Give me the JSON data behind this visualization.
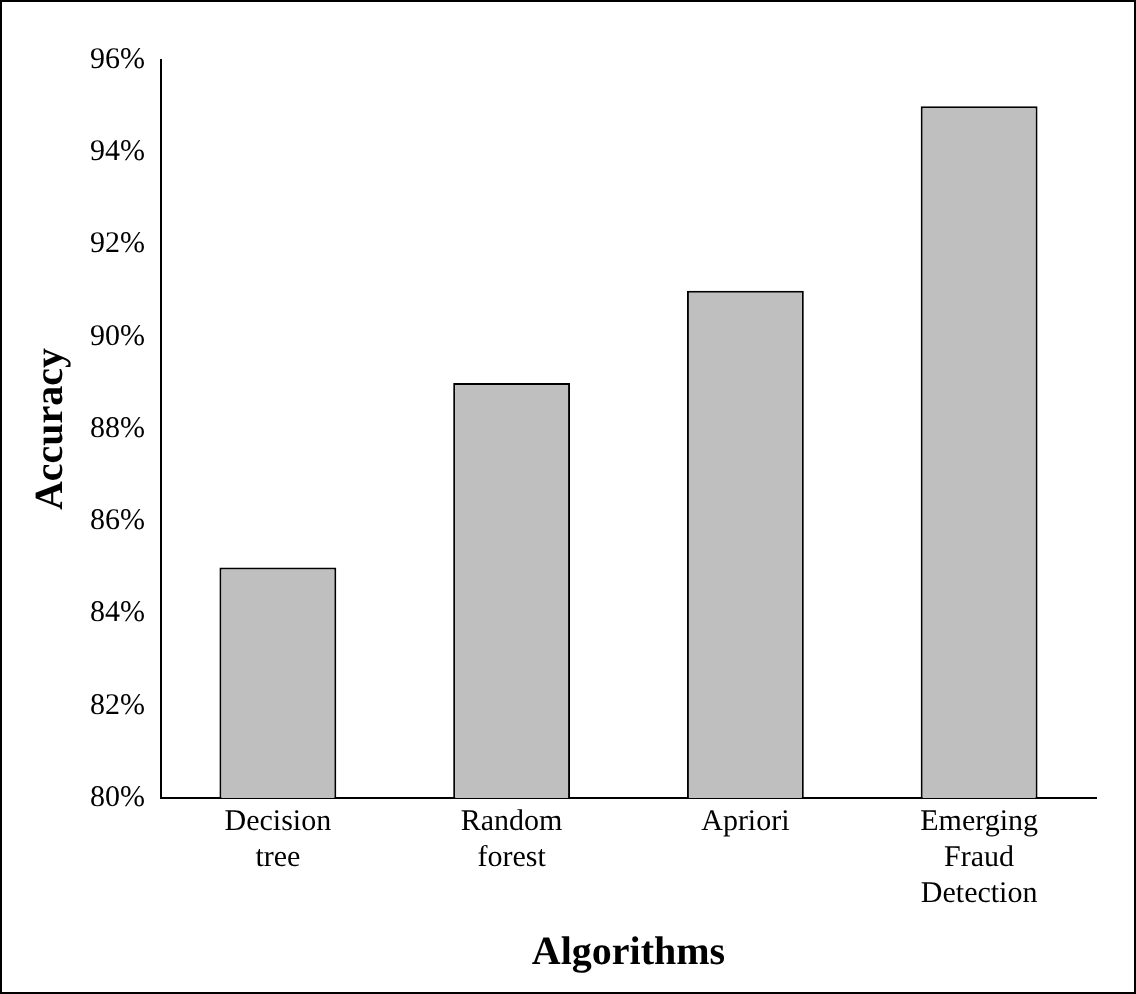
{
  "chart_data": {
    "type": "bar",
    "xlabel": "Algorithms",
    "ylabel": "Accuracy",
    "categories": [
      "Decision tree",
      "Random forest",
      "Apriori",
      "Emerging Fraud Detection"
    ],
    "values": [
      85,
      89,
      91,
      95
    ],
    "color": "#bfbfbf",
    "ylim": [
      80,
      96
    ],
    "yticks": [
      {
        "value": 80,
        "label": "80%"
      },
      {
        "value": 82,
        "label": "82%"
      },
      {
        "value": 84,
        "label": "84%"
      },
      {
        "value": 86,
        "label": "86%"
      },
      {
        "value": 88,
        "label": "88%"
      },
      {
        "value": 90,
        "label": "90%"
      },
      {
        "value": 92,
        "label": "92%"
      },
      {
        "value": 94,
        "label": "94%"
      },
      {
        "value": 96,
        "label": "96%"
      }
    ],
    "grid": false,
    "legend": false
  }
}
